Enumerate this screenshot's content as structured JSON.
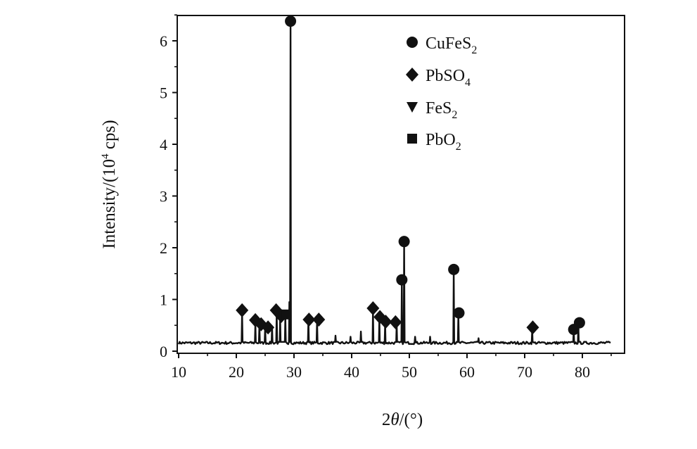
{
  "chart_data": {
    "type": "line",
    "title": "",
    "xlabel": {
      "main": "2",
      "italic": "θ",
      "rest": "/(°)"
    },
    "ylabel": {
      "main": "Intensity/(10",
      "sup": "4",
      "rest": " cps)"
    },
    "xlim": [
      10,
      85
    ],
    "ylim": [
      0,
      6.5
    ],
    "xticks": [
      "10",
      "20",
      "30",
      "40",
      "50",
      "60",
      "70",
      "80"
    ],
    "yticks": [
      "0",
      "1",
      "2",
      "3",
      "4",
      "5",
      "6"
    ],
    "legend_position": "top-right",
    "legend": [
      {
        "marker": "circle",
        "main": "CuFeS",
        "sub": "2"
      },
      {
        "marker": "diamond",
        "main": "PbSO",
        "sub": "4"
      },
      {
        "marker": "triangle",
        "main": "FeS",
        "sub": "2"
      },
      {
        "marker": "square",
        "main": "PbO",
        "sub": "2"
      }
    ],
    "baseline": 0.16,
    "peaks": [
      {
        "x": 21.0,
        "y": 0.75
      },
      {
        "x": 23.3,
        "y": 0.55
      },
      {
        "x": 24.0,
        "y": 0.5
      },
      {
        "x": 25.0,
        "y": 0.45
      },
      {
        "x": 26.2,
        "y": 0.48
      },
      {
        "x": 27.0,
        "y": 0.75
      },
      {
        "x": 27.6,
        "y": 0.65
      },
      {
        "x": 28.5,
        "y": 0.68
      },
      {
        "x": 29.2,
        "y": 0.95
      },
      {
        "x": 29.4,
        "y": 6.38
      },
      {
        "x": 32.5,
        "y": 0.6
      },
      {
        "x": 34.0,
        "y": 0.6
      },
      {
        "x": 37.2,
        "y": 0.3
      },
      {
        "x": 39.8,
        "y": 0.28
      },
      {
        "x": 41.6,
        "y": 0.38
      },
      {
        "x": 43.7,
        "y": 0.8
      },
      {
        "x": 44.8,
        "y": 0.62
      },
      {
        "x": 45.8,
        "y": 0.55
      },
      {
        "x": 47.8,
        "y": 0.55
      },
      {
        "x": 48.7,
        "y": 1.36
      },
      {
        "x": 49.1,
        "y": 2.1
      },
      {
        "x": 51.0,
        "y": 0.28
      },
      {
        "x": 53.6,
        "y": 0.28
      },
      {
        "x": 57.7,
        "y": 1.56
      },
      {
        "x": 58.5,
        "y": 0.72
      },
      {
        "x": 62.0,
        "y": 0.25
      },
      {
        "x": 71.3,
        "y": 0.42
      },
      {
        "x": 78.5,
        "y": 0.42
      },
      {
        "x": 79.3,
        "y": 0.52
      }
    ],
    "markers": [
      {
        "shape": "circle",
        "x": 29.4,
        "y": 6.38
      },
      {
        "shape": "circle",
        "x": 49.1,
        "y": 2.12
      },
      {
        "shape": "circle",
        "x": 48.7,
        "y": 1.38
      },
      {
        "shape": "circle",
        "x": 57.7,
        "y": 1.58
      },
      {
        "shape": "circle",
        "x": 58.6,
        "y": 0.74
      },
      {
        "shape": "circle",
        "x": 79.5,
        "y": 0.55
      },
      {
        "shape": "circle",
        "x": 78.5,
        "y": 0.42
      },
      {
        "shape": "diamond",
        "x": 21.0,
        "y": 0.79
      },
      {
        "shape": "diamond",
        "x": 23.3,
        "y": 0.6
      },
      {
        "shape": "diamond",
        "x": 24.3,
        "y": 0.52
      },
      {
        "shape": "diamond",
        "x": 25.5,
        "y": 0.46
      },
      {
        "shape": "diamond",
        "x": 26.9,
        "y": 0.79
      },
      {
        "shape": "diamond",
        "x": 27.8,
        "y": 0.68
      },
      {
        "shape": "diamond",
        "x": 32.6,
        "y": 0.61
      },
      {
        "shape": "diamond",
        "x": 34.3,
        "y": 0.61
      },
      {
        "shape": "diamond",
        "x": 43.7,
        "y": 0.83
      },
      {
        "shape": "diamond",
        "x": 44.9,
        "y": 0.66
      },
      {
        "shape": "diamond",
        "x": 45.9,
        "y": 0.57
      },
      {
        "shape": "diamond",
        "x": 47.6,
        "y": 0.56
      },
      {
        "shape": "diamond",
        "x": 71.4,
        "y": 0.46
      },
      {
        "shape": "square",
        "x": 28.7,
        "y": 0.71
      }
    ]
  }
}
